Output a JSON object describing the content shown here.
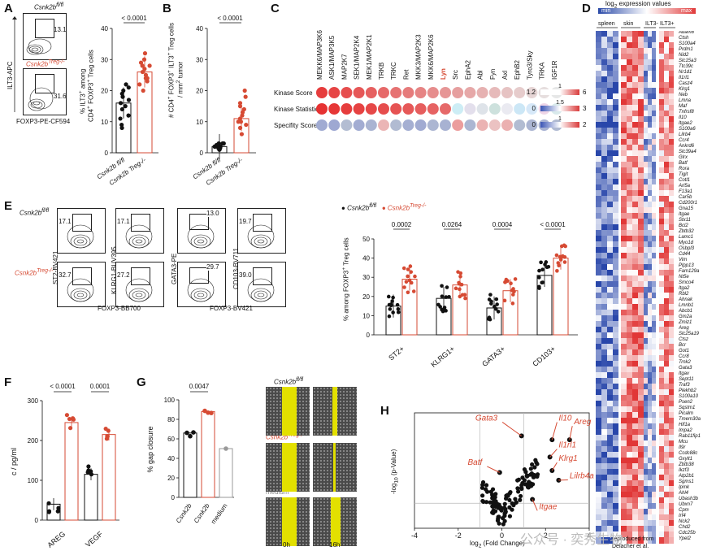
{
  "colors": {
    "red": "#d64a33",
    "black": "#111111",
    "blue": "#2b4aa8",
    "yellow": "#e3e000"
  },
  "panels": {
    "A": "A",
    "B": "B",
    "C": "C",
    "D": "D",
    "E": "E",
    "F": "F",
    "G": "G",
    "H": "H"
  },
  "panelA": {
    "top_label": "Csnk2b",
    "top_sup": "fl/fl",
    "bottom_label": "Csnk2b",
    "bottom_sup": "Treg-/-",
    "pct_top": "13.1",
    "pct_bottom": "31.6",
    "y_axis": "ILT3-APC",
    "x_axis": "FOXP3-PE-CF594",
    "chart_ylabel_1": "% ILT3",
    "chart_ylabel_2": "CD4",
    "chart_ylabel_3": "FOXP3",
    "chart_ylabel_4": "Treg cells",
    "chart_ylabel_text_a": "among",
    "pvalue": "< 0.0001",
    "xtick_1": "Csnk2b",
    "xtick_1_sup": "fl/fl",
    "xtick_2": "Csnk2b",
    "xtick_2_sup": "Treg-/-"
  },
  "chart_data": [
    {
      "id": "A",
      "type": "bar",
      "title": "",
      "categories": [
        "Csnk2b fl/fl",
        "Csnk2b Treg-/-"
      ],
      "values": [
        16,
        26
      ],
      "ylabel": "% ILT3+ among CD4+ FOXP3+ Treg cells",
      "ylim": [
        0,
        40
      ],
      "yticks": [
        "0",
        "10",
        "20",
        "30",
        "40"
      ],
      "ytick_values": [
        0,
        10,
        20,
        30,
        40
      ],
      "points": [
        [
          9,
          11,
          12,
          14,
          15,
          16,
          17,
          18,
          19,
          20,
          21,
          22,
          8
        ],
        [
          20,
          22,
          23,
          24,
          25,
          26,
          27,
          28,
          29,
          30,
          32,
          24,
          28
        ]
      ]
    },
    {
      "id": "B",
      "type": "bar",
      "categories": [
        "Csnk2b fl/fl",
        "Csnk2b Treg-/-"
      ],
      "values": [
        2,
        11
      ],
      "ylabel": "# CD4+ FOXP3+ ILT3+ Treg cells / mm2 tumor",
      "ylim": [
        0,
        40
      ],
      "yticks": [
        "0",
        "10",
        "20",
        "30",
        "40"
      ],
      "ytick_values": [
        0,
        10,
        20,
        30,
        40
      ],
      "points": [
        [
          1,
          1.5,
          2,
          2.5,
          3,
          1,
          2,
          3,
          2,
          1.5,
          2.5,
          3
        ],
        [
          6,
          8,
          9,
          10,
          11,
          12,
          13,
          14,
          15,
          16,
          18,
          20,
          10
        ]
      ]
    },
    {
      "id": "E",
      "type": "bar",
      "categories": [
        "ST2+",
        "KLRG1+",
        "GATA3+",
        "CD103+"
      ],
      "series": [
        {
          "name": "Csnk2b fl/fl",
          "values": [
            15,
            19,
            14,
            31
          ]
        },
        {
          "name": "Csnk2b Treg-/-",
          "values": [
            29,
            26,
            23,
            40
          ]
        }
      ],
      "ylabel": "% among FOXP3+ Treg cells",
      "ylim": [
        0,
        50
      ],
      "yticks": [
        "0",
        "10",
        "20",
        "30",
        "40",
        "50"
      ],
      "ytick_values": [
        0,
        10,
        20,
        30,
        40,
        50
      ],
      "pvalues": [
        "0.0002",
        "0.0264",
        "0.0004",
        "< 0.0001"
      ]
    },
    {
      "id": "F",
      "type": "bar",
      "categories": [
        "AREG",
        "VEGF"
      ],
      "series": [
        {
          "name": "Csnk2b fl/fl",
          "values": [
            40,
            115
          ]
        },
        {
          "name": "Csnk2b Treg-/-",
          "values": [
            245,
            215
          ]
        }
      ],
      "ylabel": "c / pg/ml",
      "ylim": [
        0,
        300
      ],
      "yticks": [
        "0",
        "100",
        "200",
        "300"
      ],
      "ytick_values": [
        0,
        100,
        200,
        300
      ],
      "pvalues": [
        "< 0.0001",
        "0.0001"
      ]
    },
    {
      "id": "G",
      "type": "bar",
      "categories": [
        "Csnk2b fl/fl",
        "Csnk2b Treg-/-",
        "medium"
      ],
      "values": [
        66,
        88,
        50
      ],
      "ylabel": "% gap closure",
      "ylim": [
        0,
        100
      ],
      "yticks": [
        "0",
        "20",
        "40",
        "60",
        "80",
        "100"
      ],
      "ytick_values": [
        0,
        20,
        40,
        60,
        80,
        100
      ],
      "pvalues": [
        "0.0047"
      ]
    },
    {
      "id": "H",
      "type": "scatter",
      "xlabel": "log2 (Fold Change)",
      "ylabel": "-log10 (p-Value)",
      "xlim": [
        -4,
        4
      ],
      "ylim": [
        0,
        6
      ],
      "xticks": [
        "-4",
        "-2",
        "0",
        "2",
        "4"
      ],
      "xtick_values": [
        -4,
        -2,
        0,
        2,
        4
      ],
      "labels": [
        "Gata3",
        "Il10",
        "Areg",
        "Il1rl1",
        "Klrg1",
        "Batf",
        "Lilrb4a",
        "Itgae"
      ]
    }
  ],
  "panelB": {
    "pvalue": "< 0.0001",
    "y1": "# CD4",
    "y2": "FOXP3",
    "y3": "ILT3",
    "y4": "Treg cells",
    "y5": "/ mm",
    "y6": "tumor"
  },
  "panelC": {
    "kinases": [
      "MEKK6/MAP3K6",
      "ASK1/MAP3K5",
      "MAP2K7",
      "SEK1/MAP2K4",
      "MEK1/MAP2K1",
      "TRKB",
      "TRKC",
      "Ret",
      "MKK3/MAP2K3",
      "MKK6/MAP2K6",
      "Lyn",
      "Src",
      "EphA2",
      "Abl",
      "Fyn",
      "Axl",
      "EphB2",
      "Tyro3/Sky",
      "TRKA",
      "IGF1R"
    ],
    "rows": [
      "Kinase Score",
      "Kinase Statistic",
      "Specifity Score"
    ],
    "scale1": [
      "1.2",
      "1",
      "6"
    ],
    "scale2": [
      "0",
      "1.5",
      "3"
    ],
    "scale3": [
      "0",
      "1",
      "2"
    ]
  },
  "panelD": {
    "title": "log2 expression values",
    "min": "min",
    "max": "max",
    "groups": [
      "spleen",
      "skin",
      "ILT3-",
      "ILT3+"
    ],
    "genes": [
      "Adam8",
      "Ctsh",
      "S100a4",
      "Prdm1",
      "Nid2",
      "Slc15a3",
      "Ttc39c",
      "Nr1d1",
      "Il1rl1",
      "Casz4",
      "Klrg1",
      "Neb",
      "Lmna",
      "Maf",
      "Tnfrsf8",
      "Il10",
      "Itgae2",
      "S100a6",
      "Lilrb4",
      "Ccr4",
      "Ankrd6",
      "Slc39a4",
      "Glrx",
      "Batf",
      "Rora",
      "Tigit",
      "Cotl1",
      "Arl5a",
      "F13a1",
      "Car5b",
      "Cd200r1",
      "Gna15",
      "Itgae",
      "Stx11",
      "Bcl2",
      "Zbtb32",
      "Lamc1",
      "Myo1d",
      "Osbpl3",
      "Cd44",
      "Vim",
      "Plpp13",
      "Fam129a",
      "Nt5e",
      "Smco4",
      "Itga2",
      "Rbl2",
      "Ahnak",
      "Lmnb1",
      "Abcb1",
      "Gm2a",
      "Zmiz1",
      "Areg",
      "Slc25a19",
      "Ctsz",
      "Bcr",
      "Got1",
      "Ccr8",
      "Trnk2",
      "Gata3",
      "Itgav",
      "Sept11",
      "Traf3",
      "Plekhb2",
      "S100a10",
      "Psen2",
      "Sqstm1",
      "Picalm",
      "Tmem30a",
      "Hif1a",
      "Impa2",
      "Rab11fip1",
      "Mcu",
      "Il9r",
      "Ccdc88c",
      "Gxylt1",
      "Zbtb38",
      "Ikzf3",
      "Atp2b1",
      "Sgms1",
      "Ipmk",
      "Ahl4",
      "Ubash3b",
      "Ubxn7",
      "Cpm",
      "Irf4",
      "Nck2",
      "Chd2",
      "Cdc25b",
      "Ypel2"
    ],
    "footer_1": "reproduced from",
    "footer_2": "Delacher et al."
  },
  "panelE": {
    "top_label": "Csnk2b",
    "top_sup": "fl/fl",
    "bottom_label": "Csnk2b",
    "bottom_sup": "Treg-/-",
    "pcts_top": [
      "17.1",
      "17.1",
      "13.0",
      "19.7"
    ],
    "pcts_bottom": [
      "32.7",
      "27.2",
      "29.7",
      "39.0"
    ],
    "ylabels": [
      "ST2-BV421",
      "KLRG1-BUV395",
      "GATA3-PE",
      "CD103-BV711"
    ],
    "xlabels": [
      "FOXP3-BB700",
      "FOXP3-BV421"
    ],
    "legend_1": "Csnk2b",
    "legend_1_sup": "fl/fl",
    "legend_2": "Csnk2b",
    "legend_2_sup": "Treg-/-",
    "ylabel": "% among FOXP3",
    "ylabel_2": "Treg cells",
    "xcats": [
      "ST2",
      "KLRG1",
      "GATA3",
      "CD103"
    ]
  },
  "panelF": {
    "xcats": [
      "AREG",
      "VEGF"
    ],
    "ylabel": "c / pg/ml"
  },
  "panelG": {
    "ylabel": "% gap closure",
    "xcats": [
      "Csnk2b",
      "Csnk2b",
      "medium"
    ],
    "xsups": [
      "fl/fl",
      "Treg-/-",
      ""
    ],
    "img_label_1": "Csnk2b",
    "img_sup_1": "fl/fl",
    "img_label_2": "Csnk2b",
    "img_sup_2": "Treg-/-",
    "img_label_3": "medium",
    "time_1": "0h",
    "time_2": "16h"
  },
  "panelH": {
    "ylabel_pre": "-log",
    "ylabel_sub": "10",
    "ylabel_post": " (p-Value)",
    "xlabel_pre": "log",
    "xlabel_sub": "2",
    "xlabel_post": " (Fold Change)"
  },
  "watermark": "公众号 · 奕秀生物"
}
